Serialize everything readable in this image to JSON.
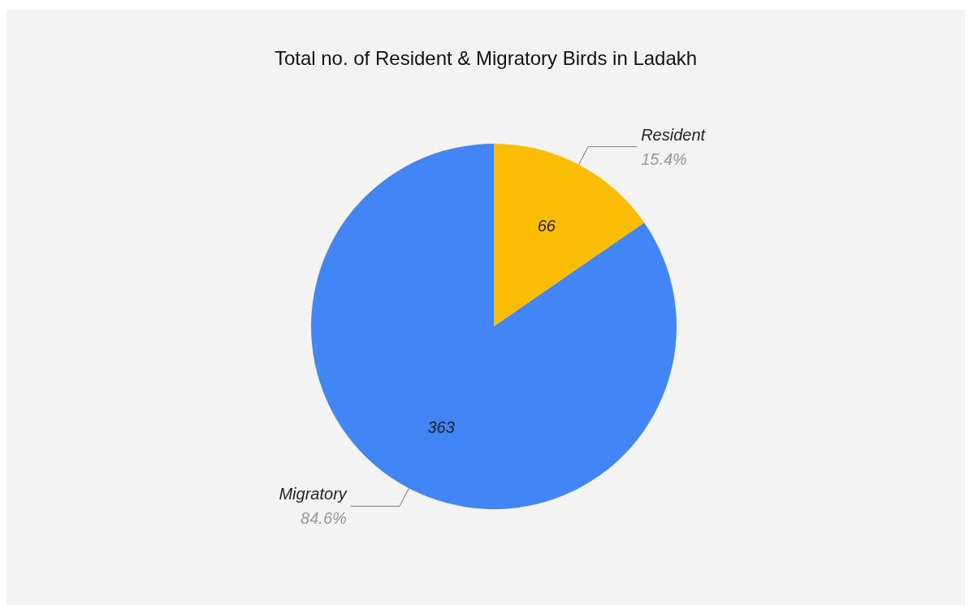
{
  "chart_data": {
    "type": "pie",
    "title": "Total no. of Resident & Migratory Birds in Ladakh",
    "categories": [
      "Resident",
      "Migratory"
    ],
    "values": [
      66,
      363
    ],
    "colors": [
      "#fbbc04",
      "#4285f4"
    ],
    "data_labels": true,
    "annotations": [
      "15.4%",
      "84.6%"
    ],
    "legend": false
  }
}
